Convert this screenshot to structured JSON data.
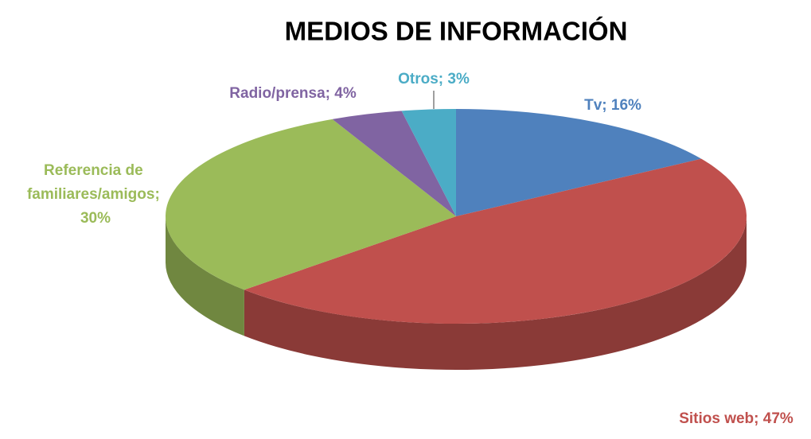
{
  "chart_data": {
    "type": "pie",
    "title": "MEDIOS DE INFORMACIÓN",
    "values": [
      16,
      47,
      30,
      4,
      3
    ],
    "value_labels": [
      "Tv; 16%",
      "Sitios web; 47%",
      "Referencia de familiares/amigos; 30%",
      "Radio/prensa; 4%",
      "Otros; 3%"
    ],
    "colors": [
      "#4f81bd",
      "#c0504d",
      "#9bbb59",
      "#8064a2",
      "#4bacc6"
    ]
  }
}
